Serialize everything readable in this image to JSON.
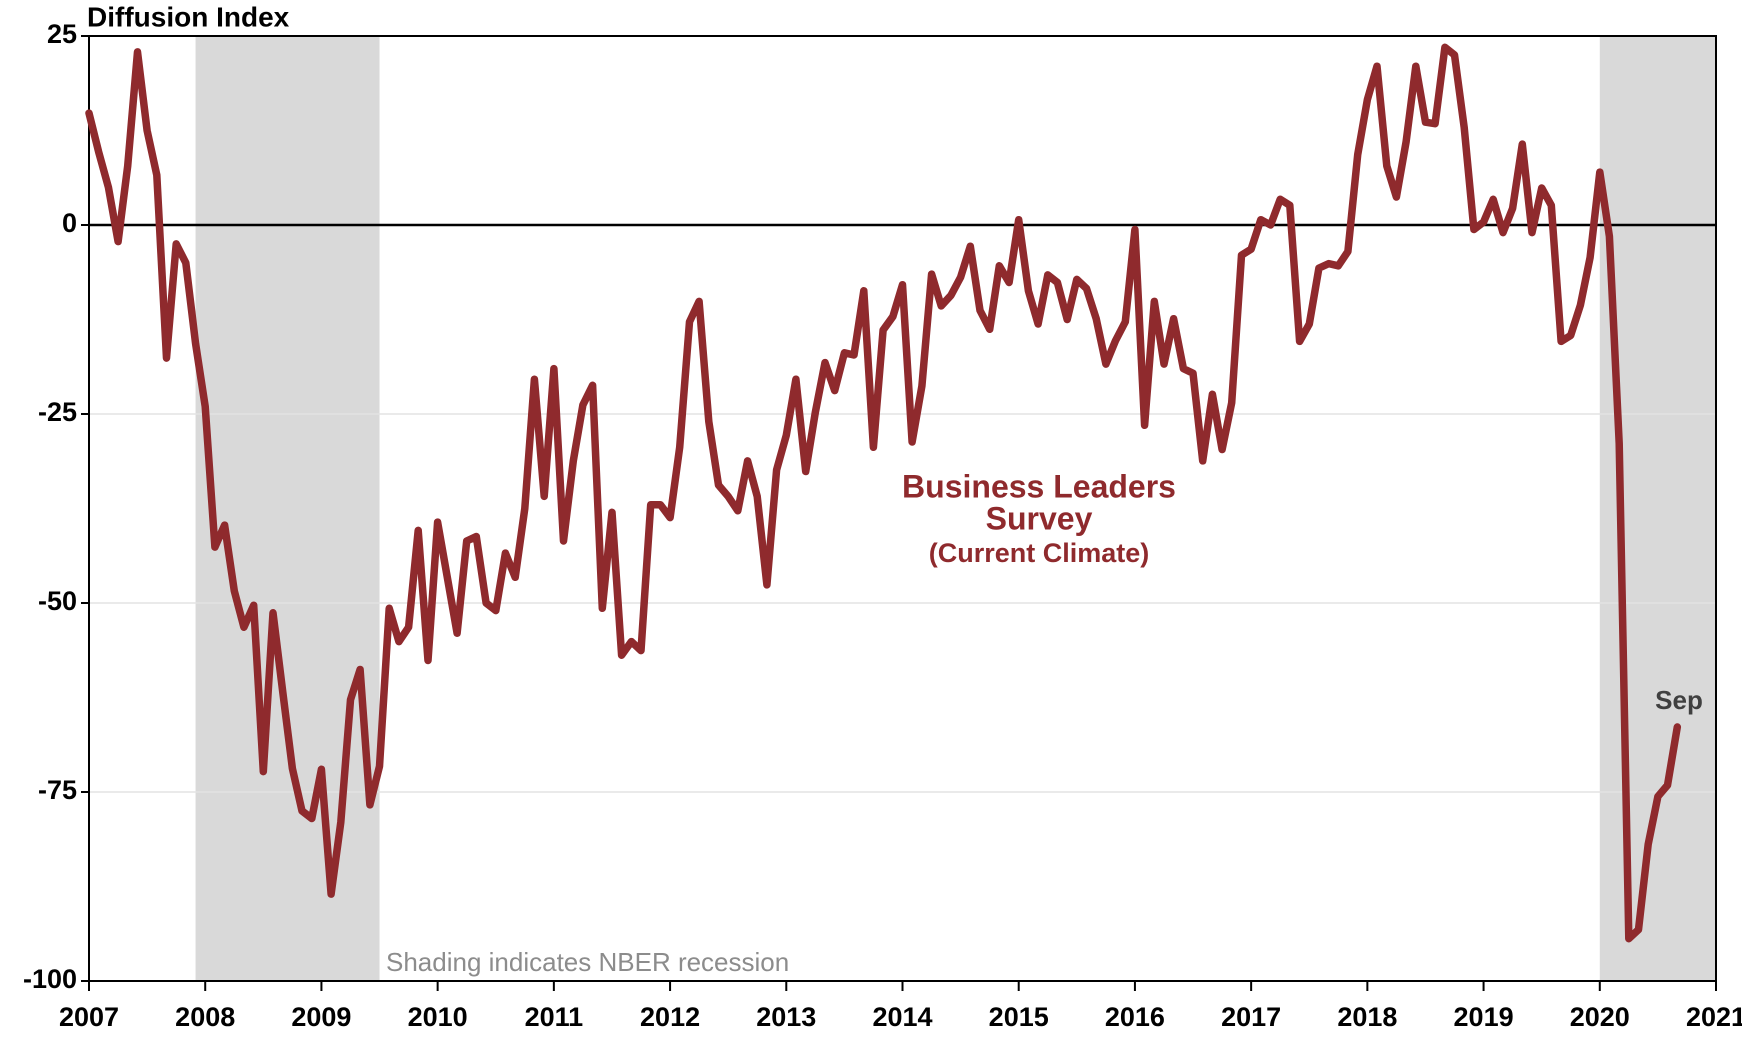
{
  "chart_data": {
    "type": "line",
    "y_label": "Diffusion Index",
    "annotations": [
      "Business Leaders",
      "Survey",
      "(Current Climate)",
      "Sep",
      "Shading indicates NBER recession"
    ],
    "xlim": [
      2007,
      2021
    ],
    "xticks": [
      2007,
      2008,
      2009,
      2010,
      2011,
      2012,
      2013,
      2014,
      2015,
      2016,
      2017,
      2018,
      2019,
      2020,
      2021
    ],
    "ylim": [
      -100,
      25
    ],
    "yticks": [
      -100,
      -75,
      -50,
      -25,
      0,
      25
    ],
    "grid": true,
    "shaded_periods": [
      [
        2007.917,
        2009.5
      ],
      [
        2020,
        2021
      ]
    ],
    "shade_color": "#d9d9d9",
    "x": [
      2007,
      2007.083,
      2007.167,
      2007.25,
      2007.333,
      2007.417,
      2007.5,
      2007.583,
      2007.667,
      2007.75,
      2007.833,
      2007.917,
      2008,
      2008.083,
      2008.167,
      2008.25,
      2008.333,
      2008.417,
      2008.5,
      2008.583,
      2008.667,
      2008.75,
      2008.833,
      2008.917,
      2009,
      2009.083,
      2009.167,
      2009.25,
      2009.333,
      2009.417,
      2009.5,
      2009.583,
      2009.667,
      2009.75,
      2009.833,
      2009.917,
      2010,
      2010.083,
      2010.167,
      2010.25,
      2010.333,
      2010.417,
      2010.5,
      2010.583,
      2010.667,
      2010.75,
      2010.833,
      2010.917,
      2011,
      2011.083,
      2011.167,
      2011.25,
      2011.333,
      2011.417,
      2011.5,
      2011.583,
      2011.667,
      2011.75,
      2011.833,
      2011.917,
      2012,
      2012.083,
      2012.167,
      2012.25,
      2012.333,
      2012.417,
      2012.5,
      2012.583,
      2012.667,
      2012.75,
      2012.833,
      2012.917,
      2013,
      2013.083,
      2013.167,
      2013.25,
      2013.333,
      2013.417,
      2013.5,
      2013.583,
      2013.667,
      2013.75,
      2013.833,
      2013.917,
      2014,
      2014.083,
      2014.167,
      2014.25,
      2014.333,
      2014.417,
      2014.5,
      2014.583,
      2014.667,
      2014.75,
      2014.833,
      2014.917,
      2015,
      2015.083,
      2015.167,
      2015.25,
      2015.333,
      2015.417,
      2015.5,
      2015.583,
      2015.667,
      2015.75,
      2015.833,
      2015.917,
      2016,
      2016.083,
      2016.167,
      2016.25,
      2016.333,
      2016.417,
      2016.5,
      2016.583,
      2016.667,
      2016.75,
      2016.833,
      2016.917,
      2017,
      2017.083,
      2017.167,
      2017.25,
      2017.333,
      2017.417,
      2017.5,
      2017.583,
      2017.667,
      2017.75,
      2017.833,
      2017.917,
      2018,
      2018.083,
      2018.167,
      2018.25,
      2018.333,
      2018.417,
      2018.5,
      2018.583,
      2018.667,
      2018.75,
      2018.833,
      2018.917,
      2019,
      2019.083,
      2019.167,
      2019.25,
      2019.333,
      2019.417,
      2019.5,
      2019.583,
      2019.667,
      2019.75,
      2019.833,
      2019.917,
      2020,
      2020.083,
      2020.167,
      2020.25,
      2020.333,
      2020.417,
      2020.5,
      2020.583,
      2020.667
    ],
    "series": [
      {
        "color": "#8f2a2d",
        "values": [
          14.8,
          9.7,
          5,
          -2.2,
          7.8,
          22.9,
          12.5,
          6.6,
          -17.6,
          -2.5,
          -5,
          -15.7,
          -24,
          -42.6,
          -39.7,
          -48.4,
          -53.2,
          -50.3,
          -72.3,
          -51.3,
          -61.7,
          -71.9,
          -77.5,
          -78.5,
          -72,
          -88.5,
          -79,
          -62.8,
          -58.8,
          -76.7,
          -71.6,
          -50.7,
          -55.1,
          -53.2,
          -40.4,
          -57.6,
          -39.3,
          -46.6,
          -54,
          -41.8,
          -41.2,
          -50,
          -51,
          -43.4,
          -46.6,
          -37.5,
          -20.4,
          -35.9,
          -19,
          -41.8,
          -31.2,
          -23.8,
          -21.2,
          -50.7,
          -38,
          -56.9,
          -55.1,
          -56.3,
          -37,
          -37,
          -38.7,
          -29.4,
          -12.8,
          -10.1,
          -26,
          -34.4,
          -35.9,
          -37.8,
          -31.2,
          -35.9,
          -47.6,
          -32.4,
          -27.8,
          -20.4,
          -32.6,
          -24.8,
          -18.2,
          -21.9,
          -16.9,
          -17.2,
          -8.7,
          -29.4,
          -13.9,
          -12.1,
          -7.9,
          -28.7,
          -21.3,
          -6.5,
          -10.7,
          -9.3,
          -6.9,
          -2.8,
          -11.3,
          -13.8,
          -5.4,
          -7.6,
          0.7,
          -8.7,
          -13.1,
          -6.6,
          -7.6,
          -12.5,
          -7.2,
          -8.4,
          -12.4,
          -18.4,
          -15.3,
          -12.8,
          -0.6,
          -26.5,
          -10.1,
          -18.4,
          -12.4,
          -19,
          -19.6,
          -31.2,
          -22.4,
          -29.7,
          -23.5,
          -4,
          -3.2,
          0.7,
          0,
          3.4,
          2.6,
          -15.4,
          -13.1,
          -5.7,
          -5.1,
          -5.4,
          -3.5,
          9.3,
          16.6,
          21,
          7.8,
          3.7,
          11,
          21,
          13.6,
          13.4,
          23.5,
          22.5,
          12.9,
          -0.6,
          0.4,
          3.4,
          -1,
          2.2,
          10.7,
          -1,
          4.9,
          2.6,
          -15.4,
          -14.6,
          -10.6,
          -4.3,
          7,
          -1.5,
          -28.9,
          -94.4,
          -93.2,
          -81.9,
          -75.6,
          -74.1,
          -66.4
        ]
      }
    ]
  }
}
